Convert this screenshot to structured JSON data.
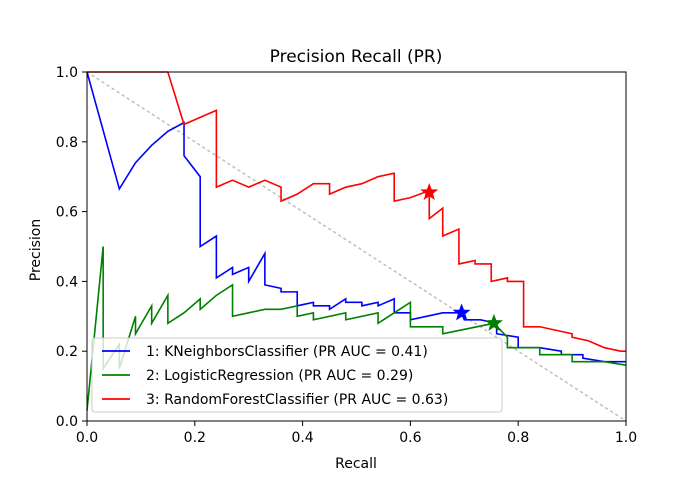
{
  "chart_data": {
    "type": "line",
    "title": "Precision Recall (PR)",
    "xlabel": "Recall",
    "ylabel": "Precision",
    "xlim": [
      0,
      1
    ],
    "ylim": [
      0,
      1.0
    ],
    "xticks": [
      "0.0",
      "0.2",
      "0.4",
      "0.6",
      "0.8",
      "1.0"
    ],
    "yticks": [
      "0.0",
      "0.2",
      "0.4",
      "0.6",
      "0.8",
      "1.0"
    ],
    "grid": false,
    "legend_position": "lower-left",
    "diagonal": {
      "x": [
        0,
        1
      ],
      "y": [
        1,
        0
      ],
      "color": "#bfbfbf",
      "style": "dotted"
    },
    "series": [
      {
        "name": "1: KNeighborsClassifier (PR AUC = 0.41)",
        "color": "#0000ff",
        "marker": {
          "x": 0.695,
          "y": 0.31
        },
        "x": [
          0.0,
          0.06,
          0.09,
          0.12,
          0.15,
          0.18,
          0.18,
          0.21,
          0.21,
          0.24,
          0.24,
          0.27,
          0.27,
          0.3,
          0.3,
          0.33,
          0.33,
          0.36,
          0.36,
          0.39,
          0.39,
          0.42,
          0.42,
          0.45,
          0.45,
          0.48,
          0.48,
          0.51,
          0.51,
          0.54,
          0.54,
          0.57,
          0.57,
          0.6,
          0.6,
          0.63,
          0.66,
          0.695,
          0.7,
          0.73,
          0.76,
          0.76,
          0.8,
          0.8,
          0.84,
          0.88,
          0.88,
          0.92,
          0.92,
          0.96,
          1.0
        ],
        "y": [
          1.0,
          0.665,
          0.74,
          0.79,
          0.83,
          0.855,
          0.76,
          0.7,
          0.5,
          0.53,
          0.41,
          0.44,
          0.42,
          0.44,
          0.4,
          0.48,
          0.39,
          0.38,
          0.37,
          0.37,
          0.33,
          0.34,
          0.33,
          0.33,
          0.32,
          0.35,
          0.34,
          0.34,
          0.33,
          0.34,
          0.33,
          0.35,
          0.31,
          0.31,
          0.29,
          0.3,
          0.31,
          0.31,
          0.29,
          0.29,
          0.28,
          0.25,
          0.24,
          0.21,
          0.21,
          0.2,
          0.19,
          0.19,
          0.18,
          0.17,
          0.17
        ]
      },
      {
        "name": "2: LogisticRegression (PR AUC = 0.29)",
        "color": "#008000",
        "marker": {
          "x": 0.755,
          "y": 0.28
        },
        "x": [
          0.0,
          0.03,
          0.03,
          0.06,
          0.06,
          0.09,
          0.09,
          0.12,
          0.12,
          0.15,
          0.15,
          0.18,
          0.21,
          0.21,
          0.24,
          0.27,
          0.27,
          0.3,
          0.33,
          0.36,
          0.39,
          0.39,
          0.42,
          0.42,
          0.48,
          0.48,
          0.54,
          0.54,
          0.6,
          0.6,
          0.66,
          0.66,
          0.755,
          0.78,
          0.78,
          0.84,
          0.84,
          0.9,
          0.9,
          0.96,
          1.0
        ],
        "y": [
          0.03,
          0.5,
          0.15,
          0.22,
          0.15,
          0.3,
          0.25,
          0.33,
          0.28,
          0.36,
          0.28,
          0.31,
          0.35,
          0.32,
          0.36,
          0.39,
          0.3,
          0.31,
          0.32,
          0.32,
          0.33,
          0.3,
          0.31,
          0.29,
          0.31,
          0.29,
          0.31,
          0.28,
          0.34,
          0.27,
          0.27,
          0.25,
          0.28,
          0.24,
          0.21,
          0.21,
          0.19,
          0.19,
          0.17,
          0.17,
          0.16
        ]
      },
      {
        "name": "3: RandomForestClassifier (PR AUC = 0.63)",
        "color": "#ff0000",
        "marker": {
          "x": 0.635,
          "y": 0.655
        },
        "x": [
          0.0,
          0.15,
          0.18,
          0.24,
          0.24,
          0.27,
          0.3,
          0.33,
          0.36,
          0.36,
          0.39,
          0.42,
          0.45,
          0.45,
          0.48,
          0.51,
          0.54,
          0.57,
          0.57,
          0.6,
          0.635,
          0.635,
          0.66,
          0.66,
          0.69,
          0.69,
          0.72,
          0.72,
          0.75,
          0.75,
          0.78,
          0.78,
          0.81,
          0.81,
          0.84,
          0.87,
          0.9,
          0.9,
          0.93,
          0.96,
          0.99,
          1.0
        ],
        "y": [
          1.0,
          1.0,
          0.85,
          0.89,
          0.67,
          0.69,
          0.67,
          0.69,
          0.67,
          0.63,
          0.65,
          0.68,
          0.68,
          0.65,
          0.67,
          0.68,
          0.7,
          0.71,
          0.63,
          0.64,
          0.66,
          0.58,
          0.61,
          0.53,
          0.55,
          0.45,
          0.46,
          0.45,
          0.45,
          0.4,
          0.41,
          0.4,
          0.4,
          0.27,
          0.27,
          0.26,
          0.25,
          0.24,
          0.23,
          0.21,
          0.2,
          0.2
        ]
      }
    ]
  }
}
